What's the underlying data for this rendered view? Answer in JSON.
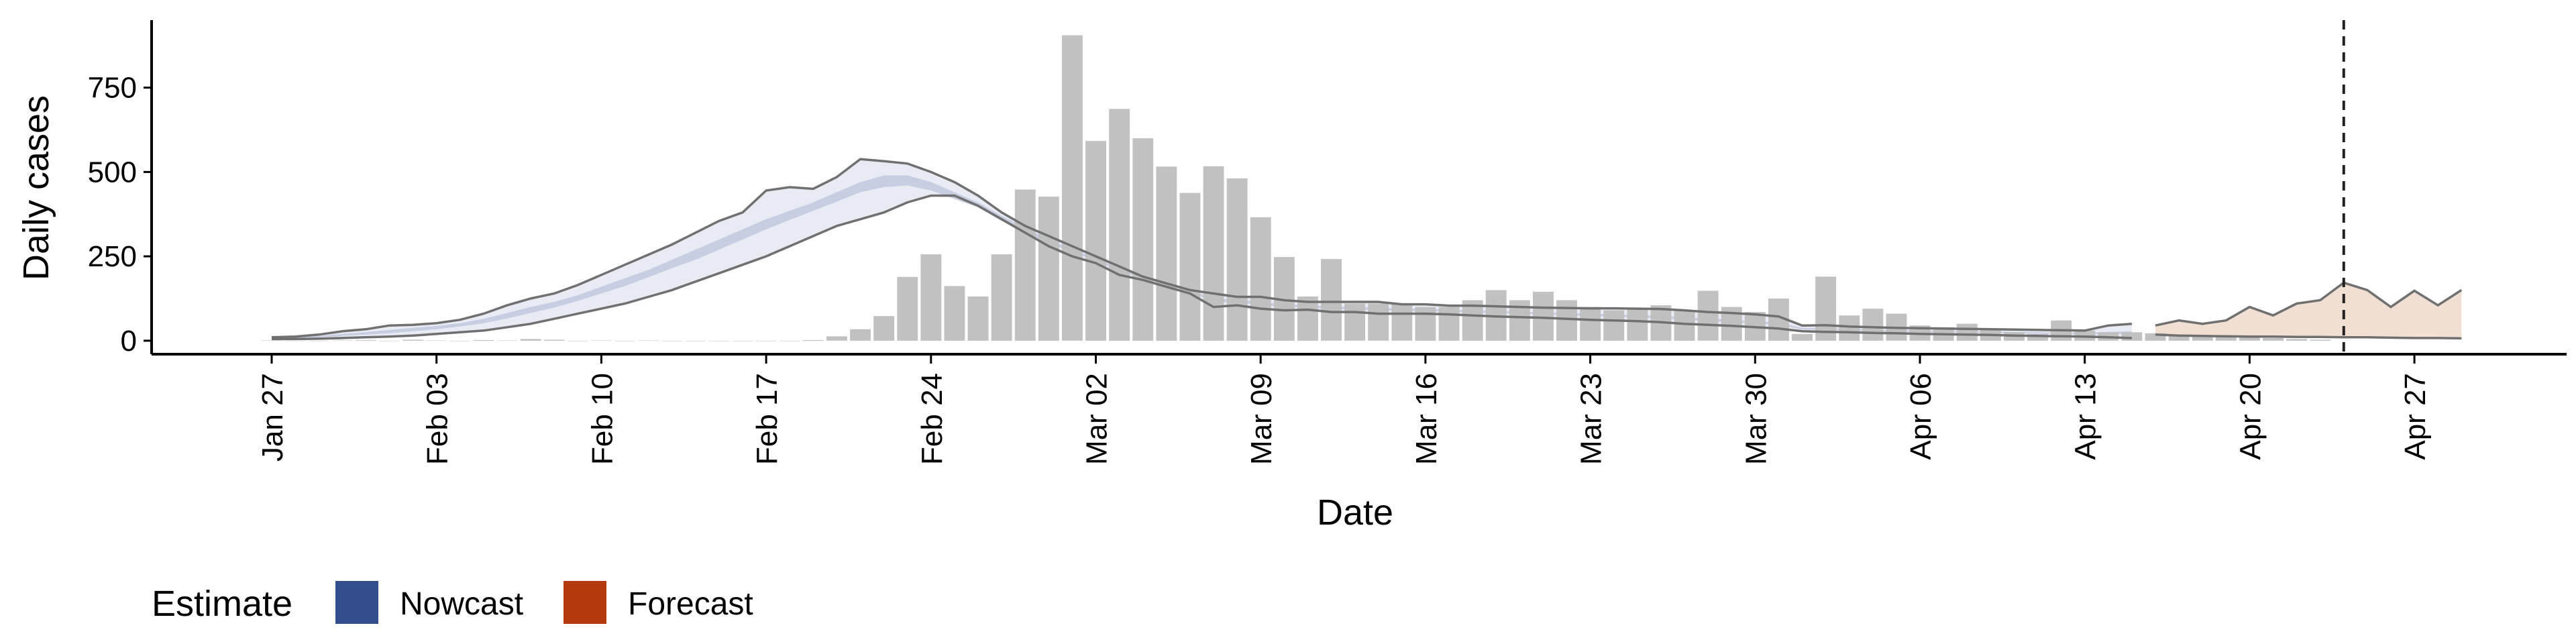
{
  "chart_data": {
    "type": "bar",
    "xlabel": "Date",
    "ylabel": "Daily cases",
    "ylim": [
      -40,
      950
    ],
    "yticks": [
      0,
      250,
      500,
      750
    ],
    "xtick_labels": [
      "Jan 27",
      "Feb 03",
      "Feb 10",
      "Feb 17",
      "Feb 24",
      "Mar 02",
      "Mar 09",
      "Mar 16",
      "Mar 23",
      "Mar 30",
      "Apr 06",
      "Apr 13",
      "Apr 20",
      "Apr 27"
    ],
    "x_start_date": "2020-01-27",
    "x_end_date": "2020-04-29",
    "grid": false,
    "legend": {
      "title": "Estimate",
      "position": "bottom-left",
      "entries": [
        {
          "label": "Nowcast",
          "color": "#344D8C"
        },
        {
          "label": "Forecast",
          "color": "#B23A0E"
        }
      ]
    },
    "colors": {
      "bars": "#BEBEBE",
      "nowcast_fill": "#E9EBF4",
      "nowcast_inner": "#C7CEE2",
      "forecast_fill": "#F1DFD4",
      "bounds_line": "#707070",
      "vline": "#222222"
    },
    "vline_date": "2020-04-24",
    "reported_cases": {
      "dates": [
        "2020-01-27",
        "2020-01-28",
        "2020-01-29",
        "2020-01-30",
        "2020-01-31",
        "2020-02-01",
        "2020-02-02",
        "2020-02-03",
        "2020-02-04",
        "2020-02-05",
        "2020-02-06",
        "2020-02-07",
        "2020-02-08",
        "2020-02-09",
        "2020-02-10",
        "2020-02-11",
        "2020-02-12",
        "2020-02-13",
        "2020-02-14",
        "2020-02-15",
        "2020-02-16",
        "2020-02-17",
        "2020-02-18",
        "2020-02-19",
        "2020-02-20",
        "2020-02-21",
        "2020-02-22",
        "2020-02-23",
        "2020-02-24",
        "2020-02-25",
        "2020-02-26",
        "2020-02-27",
        "2020-02-28",
        "2020-02-29",
        "2020-03-01",
        "2020-03-02",
        "2020-03-03",
        "2020-03-04",
        "2020-03-05",
        "2020-03-06",
        "2020-03-07",
        "2020-03-08",
        "2020-03-09",
        "2020-03-10",
        "2020-03-11",
        "2020-03-12",
        "2020-03-13",
        "2020-03-14",
        "2020-03-15",
        "2020-03-16",
        "2020-03-17",
        "2020-03-18",
        "2020-03-19",
        "2020-03-20",
        "2020-03-21",
        "2020-03-22",
        "2020-03-23",
        "2020-03-24",
        "2020-03-25",
        "2020-03-26",
        "2020-03-27",
        "2020-03-28",
        "2020-03-29",
        "2020-03-30",
        "2020-03-31",
        "2020-04-01",
        "2020-04-02",
        "2020-04-03",
        "2020-04-04",
        "2020-04-05",
        "2020-04-06",
        "2020-04-07",
        "2020-04-08",
        "2020-04-09",
        "2020-04-10",
        "2020-04-11",
        "2020-04-12",
        "2020-04-13",
        "2020-04-14",
        "2020-04-15",
        "2020-04-16",
        "2020-04-17",
        "2020-04-18",
        "2020-04-19",
        "2020-04-20",
        "2020-04-21",
        "2020-04-22",
        "2020-04-23"
      ],
      "values": [
        1,
        0,
        0,
        1,
        2,
        0,
        3,
        1,
        0,
        2,
        1,
        5,
        3,
        0,
        1,
        0,
        1,
        0,
        0,
        0,
        0,
        0,
        0,
        2,
        13,
        34,
        73,
        189,
        256,
        162,
        131,
        256,
        448,
        427,
        905,
        592,
        687,
        600,
        516,
        438,
        517,
        481,
        366,
        248,
        131,
        242,
        110,
        110,
        110,
        100,
        100,
        120,
        150,
        120,
        145,
        120,
        100,
        90,
        95,
        105,
        90,
        148,
        100,
        85,
        125,
        20,
        190,
        75,
        95,
        80,
        45,
        40,
        50,
        35,
        25,
        20,
        60,
        30,
        25,
        25,
        22,
        18,
        15,
        12,
        10,
        8,
        5,
        3
      ]
    },
    "nowcast": {
      "dates": [
        "2020-01-27",
        "2020-01-28",
        "2020-01-29",
        "2020-01-30",
        "2020-01-31",
        "2020-02-01",
        "2020-02-02",
        "2020-02-03",
        "2020-02-04",
        "2020-02-05",
        "2020-02-06",
        "2020-02-07",
        "2020-02-08",
        "2020-02-09",
        "2020-02-10",
        "2020-02-11",
        "2020-02-12",
        "2020-02-13",
        "2020-02-14",
        "2020-02-15",
        "2020-02-16",
        "2020-02-17",
        "2020-02-18",
        "2020-02-19",
        "2020-02-20",
        "2020-02-21",
        "2020-02-22",
        "2020-02-23",
        "2020-02-24",
        "2020-02-25",
        "2020-02-26",
        "2020-02-27",
        "2020-02-28",
        "2020-02-29",
        "2020-03-01",
        "2020-03-02",
        "2020-03-03",
        "2020-03-04",
        "2020-03-05",
        "2020-03-06",
        "2020-03-07",
        "2020-03-08",
        "2020-03-09",
        "2020-03-10",
        "2020-03-11",
        "2020-03-12",
        "2020-03-13",
        "2020-03-14",
        "2020-03-15",
        "2020-03-16",
        "2020-03-17",
        "2020-03-18",
        "2020-03-19",
        "2020-03-20",
        "2020-03-21",
        "2020-03-22",
        "2020-03-23",
        "2020-03-24",
        "2020-03-25",
        "2020-03-26",
        "2020-03-27",
        "2020-03-28",
        "2020-03-29",
        "2020-03-30",
        "2020-03-31",
        "2020-04-01",
        "2020-04-02",
        "2020-04-03",
        "2020-04-04",
        "2020-04-05",
        "2020-04-06",
        "2020-04-07",
        "2020-04-08",
        "2020-04-09",
        "2020-04-10",
        "2020-04-11",
        "2020-04-12",
        "2020-04-13",
        "2020-04-14",
        "2020-04-15"
      ],
      "upper": [
        10,
        12,
        18,
        28,
        34,
        45,
        47,
        52,
        62,
        80,
        105,
        125,
        140,
        165,
        195,
        225,
        255,
        285,
        320,
        355,
        380,
        445,
        455,
        450,
        485,
        538,
        532,
        525,
        500,
        470,
        430,
        380,
        340,
        310,
        280,
        250,
        220,
        190,
        170,
        150,
        140,
        130,
        130,
        120,
        115,
        115,
        115,
        115,
        108,
        108,
        104,
        104,
        102,
        100,
        98,
        97,
        96,
        96,
        95,
        94,
        90,
        85,
        82,
        78,
        72,
        45,
        46,
        42,
        40,
        38,
        37,
        36,
        35,
        34,
        33,
        32,
        31,
        30,
        45,
        50
      ],
      "lower": [
        5,
        5,
        6,
        8,
        10,
        12,
        15,
        20,
        25,
        30,
        40,
        50,
        65,
        80,
        95,
        110,
        130,
        150,
        175,
        200,
        225,
        250,
        280,
        310,
        340,
        360,
        380,
        410,
        430,
        430,
        400,
        360,
        320,
        280,
        250,
        230,
        195,
        180,
        160,
        140,
        100,
        105,
        95,
        90,
        92,
        85,
        85,
        80,
        80,
        80,
        78,
        75,
        72,
        70,
        68,
        65,
        62,
        60,
        58,
        55,
        50,
        47,
        44,
        40,
        36,
        28,
        26,
        25,
        23,
        22,
        20,
        19,
        18,
        17,
        15,
        14,
        13,
        12,
        10,
        8
      ],
      "inner_upper": [
        9,
        10,
        14,
        20,
        25,
        32,
        38,
        44,
        52,
        65,
        82,
        100,
        115,
        135,
        160,
        185,
        210,
        240,
        270,
        300,
        330,
        360,
        385,
        410,
        440,
        470,
        490,
        490,
        470,
        440,
        410,
        370,
        335,
        300,
        270,
        245,
        215,
        190,
        170,
        150,
        125,
        122,
        115,
        108,
        105,
        102,
        100,
        98,
        95,
        95,
        92,
        90,
        88,
        86,
        84,
        82,
        80,
        78,
        76,
        74,
        70,
        66,
        62,
        58,
        54,
        38,
        37,
        35,
        33,
        31,
        30,
        29,
        28,
        27,
        26,
        25,
        24,
        23,
        26,
        28
      ],
      "inner_lower": [
        7,
        8,
        10,
        14,
        18,
        22,
        28,
        34,
        42,
        52,
        66,
        82,
        98,
        118,
        140,
        162,
        188,
        215,
        240,
        270,
        300,
        330,
        358,
        385,
        412,
        440,
        455,
        460,
        445,
        420,
        395,
        355,
        320,
        290,
        262,
        238,
        205,
        185,
        165,
        145,
        115,
        113,
        106,
        100,
        98,
        94,
        92,
        90,
        88,
        88,
        86,
        84,
        82,
        80,
        78,
        76,
        73,
        71,
        69,
        66,
        62,
        58,
        55,
        51,
        47,
        33,
        32,
        30,
        28,
        27,
        26,
        25,
        24,
        23,
        22,
        21,
        20,
        19,
        20,
        20
      ]
    },
    "forecast": {
      "dates": [
        "2020-04-16",
        "2020-04-17",
        "2020-04-18",
        "2020-04-19",
        "2020-04-20",
        "2020-04-21",
        "2020-04-22",
        "2020-04-23",
        "2020-04-24",
        "2020-04-25",
        "2020-04-26",
        "2020-04-27",
        "2020-04-28",
        "2020-04-29"
      ],
      "upper": [
        45,
        60,
        50,
        60,
        100,
        75,
        110,
        120,
        172,
        150,
        100,
        148,
        105,
        150
      ],
      "lower": [
        18,
        15,
        14,
        13,
        12,
        12,
        11,
        11,
        10,
        10,
        9,
        8,
        8,
        7
      ]
    }
  }
}
